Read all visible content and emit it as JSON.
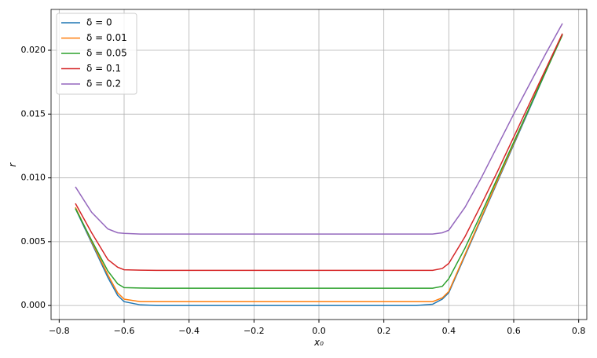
{
  "chart_data": {
    "type": "line",
    "xlabel": "x₀",
    "ylabel": "r",
    "x": [
      -0.75,
      -0.7,
      -0.65,
      -0.62,
      -0.6,
      -0.55,
      -0.5,
      -0.4,
      -0.3,
      -0.2,
      -0.1,
      0,
      0.1,
      0.2,
      0.3,
      0.35,
      0.38,
      0.4,
      0.45,
      0.5,
      0.55,
      0.6,
      0.65,
      0.7,
      0.75
    ],
    "series": [
      {
        "name": "δ = 0",
        "color": "#1f77b4",
        "values": [
          0.0076,
          0.0049,
          0.0022,
          0.0008,
          0.0003,
          5e-05,
          0,
          0,
          0,
          0,
          0,
          0,
          0,
          0,
          0,
          0.0001,
          0.0005,
          0.001,
          0.0039,
          0.0068,
          0.0097,
          0.0126,
          0.0155,
          0.0184,
          0.0213
        ]
      },
      {
        "name": "δ = 0.01",
        "color": "#ff7f0e",
        "values": [
          0.0077,
          0.005,
          0.0024,
          0.001,
          0.0005,
          0.0003,
          0.0003,
          0.0003,
          0.0003,
          0.0003,
          0.0003,
          0.0003,
          0.0003,
          0.0003,
          0.0003,
          0.0003,
          0.0006,
          0.0011,
          0.004,
          0.0069,
          0.0098,
          0.0127,
          0.0156,
          0.0185,
          0.0213
        ]
      },
      {
        "name": "δ = 0.05",
        "color": "#2ca02c",
        "values": [
          0.0076,
          0.0051,
          0.0027,
          0.0017,
          0.0014,
          0.00137,
          0.00135,
          0.00135,
          0.00135,
          0.00135,
          0.00135,
          0.00135,
          0.00135,
          0.00135,
          0.00135,
          0.00135,
          0.0015,
          0.0021,
          0.0045,
          0.0072,
          0.01,
          0.0128,
          0.0156,
          0.0184,
          0.0212
        ]
      },
      {
        "name": "δ = 0.1",
        "color": "#d62728",
        "values": [
          0.008,
          0.0057,
          0.0036,
          0.003,
          0.0028,
          0.00277,
          0.00275,
          0.00275,
          0.00275,
          0.00275,
          0.00275,
          0.00275,
          0.00275,
          0.00275,
          0.00275,
          0.00275,
          0.0029,
          0.0033,
          0.0054,
          0.0079,
          0.0105,
          0.0132,
          0.0159,
          0.0186,
          0.0213
        ]
      },
      {
        "name": "δ = 0.2",
        "color": "#9467bd",
        "values": [
          0.0093,
          0.0073,
          0.006,
          0.0057,
          0.00565,
          0.0056,
          0.0056,
          0.0056,
          0.0056,
          0.0056,
          0.0056,
          0.0056,
          0.0056,
          0.0056,
          0.0056,
          0.0056,
          0.0057,
          0.0059,
          0.0077,
          0.01,
          0.0125,
          0.015,
          0.0174,
          0.0198,
          0.0221
        ]
      }
    ],
    "xlim": [
      -0.825,
      0.825
    ],
    "ylim": [
      -0.0011,
      0.0232
    ],
    "xticks": [
      {
        "value": -0.8,
        "label": "−0.8"
      },
      {
        "value": -0.6,
        "label": "−0.6"
      },
      {
        "value": -0.4,
        "label": "−0.4"
      },
      {
        "value": -0.2,
        "label": "−0.2"
      },
      {
        "value": 0,
        "label": "0.0"
      },
      0.2,
      0.4,
      0.6,
      0.8
    ],
    "yticks": [
      {
        "value": 0,
        "label": "0.000"
      },
      {
        "value": 0.005,
        "label": "0.005"
      },
      {
        "value": 0.01,
        "label": "0.010"
      },
      {
        "value": 0.015,
        "label": "0.015"
      },
      {
        "value": 0.02,
        "label": "0.020"
      }
    ],
    "grid": true,
    "legend": "upper left"
  }
}
